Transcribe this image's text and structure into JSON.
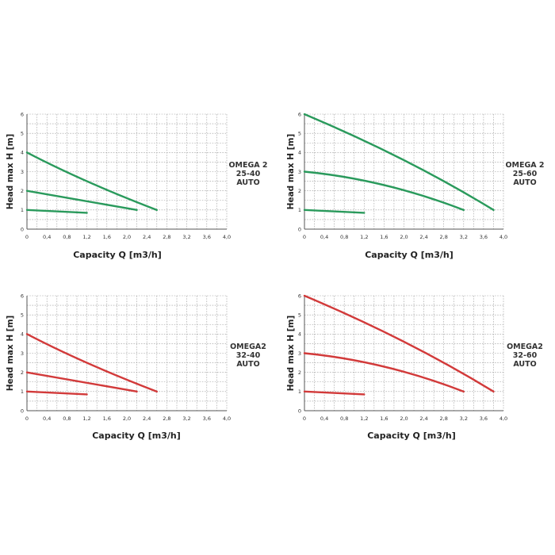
{
  "chart_data": [
    {
      "type": "line",
      "model_label": [
        "OMEGA 2",
        "25-40",
        "AUTO"
      ],
      "xlabel": "Capacity Q [m3/h]",
      "ylabel": "Head max H [m]",
      "xlim": [
        0,
        4.0
      ],
      "ylim": [
        0,
        6
      ],
      "x_ticks": [
        "0",
        "0,4",
        "0,8",
        "1,2",
        "1,6",
        "2,0",
        "2,4",
        "2,8",
        "3,2",
        "3,6",
        "4,0"
      ],
      "y_ticks": [
        "1",
        "2",
        "3",
        "4",
        "5",
        "6"
      ],
      "grid": true,
      "line_color": "#2a9a5c",
      "series": [
        {
          "points": [
            [
              0,
              4.0
            ],
            [
              1.2,
              2.5
            ],
            [
              2.6,
              1.0
            ]
          ]
        },
        {
          "points": [
            [
              0,
              2.0
            ],
            [
              1.0,
              1.55
            ],
            [
              2.2,
              1.0
            ]
          ]
        },
        {
          "points": [
            [
              0,
              1.0
            ],
            [
              1.2,
              0.85
            ]
          ]
        }
      ]
    },
    {
      "type": "line",
      "model_label": [
        "OMEGA 2",
        "25-60",
        "AUTO"
      ],
      "xlabel": "Capacity Q [m3/h]",
      "ylabel": "Head max H [m]",
      "xlim": [
        0,
        4.0
      ],
      "ylim": [
        0,
        6
      ],
      "x_ticks": [
        "0",
        "0,4",
        "0,8",
        "1,2",
        "1,6",
        "2,0",
        "2,4",
        "2,8",
        "3,2",
        "3,6",
        "4,0"
      ],
      "y_ticks": [
        "1",
        "2",
        "3",
        "4",
        "5",
        "6"
      ],
      "grid": true,
      "line_color": "#2a9a5c",
      "series": [
        {
          "points": [
            [
              0,
              6.0
            ],
            [
              2.0,
              3.6
            ],
            [
              3.8,
              1.0
            ]
          ]
        },
        {
          "points": [
            [
              0,
              3.0
            ],
            [
              1.6,
              2.3
            ],
            [
              3.2,
              1.0
            ]
          ]
        },
        {
          "points": [
            [
              0,
              1.0
            ],
            [
              1.2,
              0.85
            ]
          ]
        }
      ]
    },
    {
      "type": "line",
      "model_label": [
        "OMEGA2",
        "32-40",
        "AUTO"
      ],
      "xlabel": "Capacity Q [m3/h]",
      "ylabel": "Head max H [m]",
      "xlim": [
        0,
        4.0
      ],
      "ylim": [
        0,
        6
      ],
      "x_ticks": [
        "0",
        "0,4",
        "0,8",
        "1,2",
        "1,6",
        "2,0",
        "2,4",
        "2,8",
        "3,2",
        "3,6",
        "4,0"
      ],
      "y_ticks": [
        "1",
        "2",
        "3",
        "4",
        "5",
        "6"
      ],
      "grid": true,
      "line_color": "#d23a3a",
      "series": [
        {
          "points": [
            [
              0,
              4.0
            ],
            [
              1.2,
              2.5
            ],
            [
              2.6,
              1.0
            ]
          ]
        },
        {
          "points": [
            [
              0,
              2.0
            ],
            [
              1.0,
              1.55
            ],
            [
              2.2,
              1.0
            ]
          ]
        },
        {
          "points": [
            [
              0,
              1.0
            ],
            [
              1.2,
              0.85
            ]
          ]
        }
      ]
    },
    {
      "type": "line",
      "model_label": [
        "OMEGA2",
        "32-60",
        "AUTO"
      ],
      "xlabel": "Capacity Q [m3/h]",
      "ylabel": "Head max H [m]",
      "xlim": [
        0,
        4.0
      ],
      "ylim": [
        0,
        6
      ],
      "x_ticks": [
        "0",
        "0,4",
        "0,8",
        "1,2",
        "1,6",
        "2,0",
        "2,4",
        "2,8",
        "3,2",
        "3,6",
        "4,0"
      ],
      "y_ticks": [
        "1",
        "2",
        "3",
        "4",
        "5",
        "6"
      ],
      "grid": true,
      "line_color": "#d23a3a",
      "series": [
        {
          "points": [
            [
              0,
              6.0
            ],
            [
              2.0,
              3.6
            ],
            [
              3.8,
              1.0
            ]
          ]
        },
        {
          "points": [
            [
              0,
              3.0
            ],
            [
              1.6,
              2.3
            ],
            [
              3.2,
              1.0
            ]
          ]
        },
        {
          "points": [
            [
              0,
              1.0
            ],
            [
              1.2,
              0.85
            ]
          ]
        }
      ]
    }
  ]
}
